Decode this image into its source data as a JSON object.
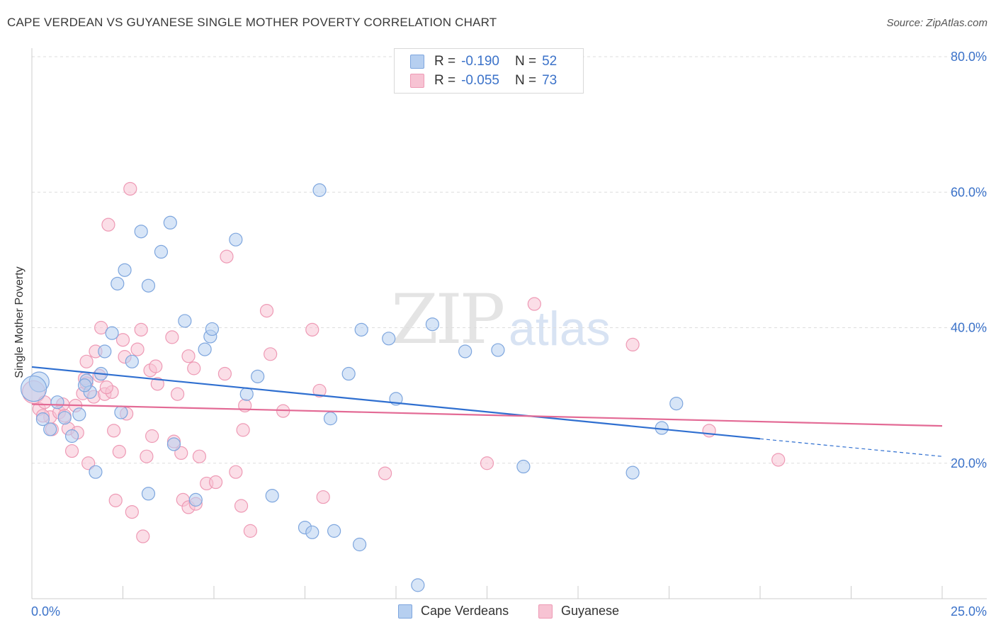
{
  "title": "CAPE VERDEAN VS GUYANESE SINGLE MOTHER POVERTY CORRELATION CHART",
  "source": "Source: ZipAtlas.com",
  "watermark": {
    "zip": "ZIP",
    "atlas": "atlas"
  },
  "colors": {
    "blue_fill": "#b6cff0",
    "blue_stroke": "#7ea6de",
    "blue_line": "#2f6fd0",
    "pink_fill": "#f7c3d3",
    "pink_stroke": "#ee9ab5",
    "pink_line": "#e36a95",
    "axis_text": "#3b72c9",
    "grid": "#dddddd"
  },
  "legend_top": {
    "rows": [
      {
        "r_label": "R =",
        "r_value": "-0.190",
        "n_label": "N =",
        "n_value": "52"
      },
      {
        "r_label": "R =",
        "r_value": "-0.055",
        "n_label": "N =",
        "n_value": "73"
      }
    ]
  },
  "legend_bottom": [
    "Cape Verdeans",
    "Guyanese"
  ],
  "chart_data": {
    "type": "scatter",
    "title": "CAPE VERDEAN VS GUYANESE SINGLE MOTHER POVERTY CORRELATION CHART",
    "xlabel": "",
    "ylabel": "Single Mother Poverty",
    "xlim": [
      0,
      25
    ],
    "ylim": [
      0,
      80
    ],
    "x_tick_labels": [
      "0.0%",
      "25.0%"
    ],
    "y_ticks": [
      20,
      40,
      60,
      80
    ],
    "y_tick_labels": [
      "20.0%",
      "40.0%",
      "60.0%",
      "80.0%"
    ],
    "grid": true,
    "series": [
      {
        "name": "Cape Verdeans",
        "r": -0.19,
        "n": 52,
        "trend": {
          "x0": 0,
          "y0": 34.2,
          "x1": 20,
          "y1": 23.6,
          "dash_to_x": 25,
          "dash_to_y": 21.0
        },
        "points": [
          [
            0.2,
            32.0,
            14
          ],
          [
            0.3,
            26.5,
            9
          ],
          [
            0.5,
            25.0,
            9
          ],
          [
            0.7,
            29.0,
            9
          ],
          [
            0.9,
            26.7,
            9
          ],
          [
            1.1,
            24.0,
            9
          ],
          [
            1.3,
            27.2,
            9
          ],
          [
            1.5,
            32.2,
            9
          ],
          [
            1.6,
            30.5,
            9
          ],
          [
            1.75,
            18.7,
            9
          ],
          [
            1.9,
            33.2,
            9
          ],
          [
            2.0,
            36.5,
            9
          ],
          [
            2.2,
            39.2,
            9
          ],
          [
            2.35,
            46.5,
            9
          ],
          [
            2.45,
            27.5,
            9
          ],
          [
            2.55,
            48.5,
            9
          ],
          [
            2.75,
            35.0,
            9
          ],
          [
            3.0,
            54.2,
            9
          ],
          [
            3.2,
            46.2,
            9
          ],
          [
            3.2,
            15.5,
            9
          ],
          [
            3.55,
            51.2,
            9
          ],
          [
            3.8,
            55.5,
            9
          ],
          [
            3.9,
            22.8,
            9
          ],
          [
            4.2,
            41.0,
            9
          ],
          [
            4.5,
            14.6,
            9
          ],
          [
            4.75,
            36.8,
            9
          ],
          [
            4.9,
            38.7,
            9
          ],
          [
            4.95,
            39.8,
            9
          ],
          [
            5.6,
            53.0,
            9
          ],
          [
            5.9,
            30.2,
            9
          ],
          [
            6.2,
            32.8,
            9
          ],
          [
            6.6,
            15.2,
            9
          ],
          [
            7.5,
            10.5,
            9
          ],
          [
            7.7,
            9.8,
            9
          ],
          [
            7.9,
            60.3,
            9
          ],
          [
            8.2,
            26.6,
            9
          ],
          [
            8.3,
            10.0,
            9
          ],
          [
            8.7,
            33.2,
            9
          ],
          [
            9.0,
            8.0,
            9
          ],
          [
            9.05,
            39.7,
            9
          ],
          [
            9.8,
            38.4,
            9
          ],
          [
            10.0,
            29.5,
            9
          ],
          [
            10.6,
            2.0,
            9
          ],
          [
            11.0,
            40.5,
            9
          ],
          [
            11.9,
            36.5,
            9
          ],
          [
            12.8,
            36.7,
            9
          ],
          [
            13.5,
            19.5,
            9
          ],
          [
            16.5,
            18.6,
            9
          ],
          [
            17.3,
            25.2,
            9
          ],
          [
            17.7,
            28.8,
            9
          ],
          [
            0.05,
            31.0,
            18
          ],
          [
            1.45,
            31.5,
            9
          ]
        ]
      },
      {
        "name": "Guyanese",
        "r": -0.055,
        "n": 73,
        "trend": {
          "x0": 0,
          "y0": 28.7,
          "x1": 25,
          "y1": 25.5
        },
        "points": [
          [
            0.05,
            30.5,
            16
          ],
          [
            0.2,
            28.0,
            9
          ],
          [
            0.35,
            29.0,
            9
          ],
          [
            0.5,
            26.8,
            9
          ],
          [
            0.55,
            25.0,
            9
          ],
          [
            0.75,
            27.5,
            9
          ],
          [
            0.85,
            28.7,
            9
          ],
          [
            1.0,
            25.1,
            9
          ],
          [
            1.1,
            21.8,
            9
          ],
          [
            1.2,
            28.5,
            9
          ],
          [
            1.25,
            24.5,
            9
          ],
          [
            1.4,
            30.3,
            9
          ],
          [
            1.45,
            32.5,
            9
          ],
          [
            1.5,
            31.8,
            9
          ],
          [
            1.5,
            35.0,
            9
          ],
          [
            1.55,
            20.0,
            9
          ],
          [
            1.7,
            29.8,
            9
          ],
          [
            1.75,
            36.5,
            9
          ],
          [
            1.85,
            32.9,
            9
          ],
          [
            1.9,
            40.0,
            9
          ],
          [
            2.0,
            30.2,
            9
          ],
          [
            2.1,
            55.2,
            9
          ],
          [
            2.2,
            30.5,
            9
          ],
          [
            2.25,
            24.8,
            9
          ],
          [
            2.3,
            14.5,
            9
          ],
          [
            2.4,
            21.7,
            9
          ],
          [
            2.5,
            38.2,
            9
          ],
          [
            2.55,
            35.7,
            9
          ],
          [
            2.6,
            27.3,
            9
          ],
          [
            2.7,
            60.5,
            9
          ],
          [
            2.75,
            12.8,
            9
          ],
          [
            2.9,
            36.8,
            9
          ],
          [
            3.0,
            39.7,
            9
          ],
          [
            3.05,
            9.2,
            9
          ],
          [
            3.15,
            21.0,
            9
          ],
          [
            3.25,
            33.7,
            9
          ],
          [
            3.3,
            24.0,
            9
          ],
          [
            3.4,
            34.3,
            9
          ],
          [
            3.45,
            31.7,
            9
          ],
          [
            3.85,
            38.6,
            9
          ],
          [
            3.9,
            23.2,
            9
          ],
          [
            4.0,
            30.2,
            9
          ],
          [
            4.1,
            21.5,
            9
          ],
          [
            4.15,
            14.6,
            9
          ],
          [
            4.3,
            13.5,
            9
          ],
          [
            4.3,
            35.8,
            9
          ],
          [
            4.45,
            34.0,
            9
          ],
          [
            4.5,
            14.0,
            9
          ],
          [
            4.6,
            21.0,
            9
          ],
          [
            4.8,
            17.0,
            9
          ],
          [
            5.05,
            17.2,
            9
          ],
          [
            5.3,
            33.2,
            9
          ],
          [
            5.35,
            50.5,
            9
          ],
          [
            5.6,
            18.7,
            9
          ],
          [
            5.75,
            13.7,
            9
          ],
          [
            5.8,
            24.9,
            9
          ],
          [
            5.85,
            28.5,
            9
          ],
          [
            6.0,
            10.0,
            9
          ],
          [
            6.45,
            42.5,
            9
          ],
          [
            6.55,
            36.1,
            9
          ],
          [
            6.9,
            27.7,
            9
          ],
          [
            7.7,
            39.7,
            9
          ],
          [
            7.9,
            30.7,
            9
          ],
          [
            8.0,
            15.0,
            9
          ],
          [
            9.7,
            18.5,
            9
          ],
          [
            12.5,
            20.0,
            9
          ],
          [
            13.8,
            43.5,
            9
          ],
          [
            16.5,
            37.5,
            9
          ],
          [
            18.6,
            24.8,
            9
          ],
          [
            20.5,
            20.5,
            9
          ],
          [
            0.3,
            27.0,
            9
          ],
          [
            0.9,
            27.0,
            9
          ],
          [
            2.05,
            31.2,
            9
          ]
        ]
      }
    ]
  }
}
